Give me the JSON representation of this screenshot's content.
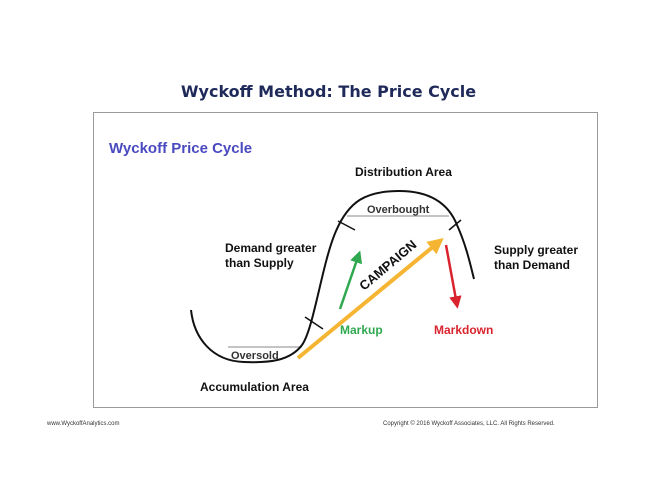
{
  "page": {
    "title": "Wyckoff Method: The Price Cycle",
    "footer_left": "www.WyckoffAnalytics.com",
    "footer_right": "Copyright © 2016 Wyckoff Associates, LLC. All Rights Reserved."
  },
  "diagram": {
    "heading": "Wyckoff Price Cycle",
    "distribution_area": "Distribution Area",
    "overbought": "Overbought",
    "demand_line1": "Demand greater",
    "demand_line2": "than Supply",
    "supply_line1": "Supply greater",
    "supply_line2": "than Demand",
    "campaign": "CAMPAIGN",
    "markup": "Markup",
    "markdown": "Markdown",
    "oversold": "Oversold",
    "accumulation_area": "Accumulation Area"
  },
  "colors": {
    "title": "#1f2a5a",
    "heading": "#4a4ac0",
    "markup": "#2fa84f",
    "markdown": "#d9232e",
    "campaign_arrow": "#f5b532",
    "curve": "#111111",
    "level_line": "#888888"
  }
}
